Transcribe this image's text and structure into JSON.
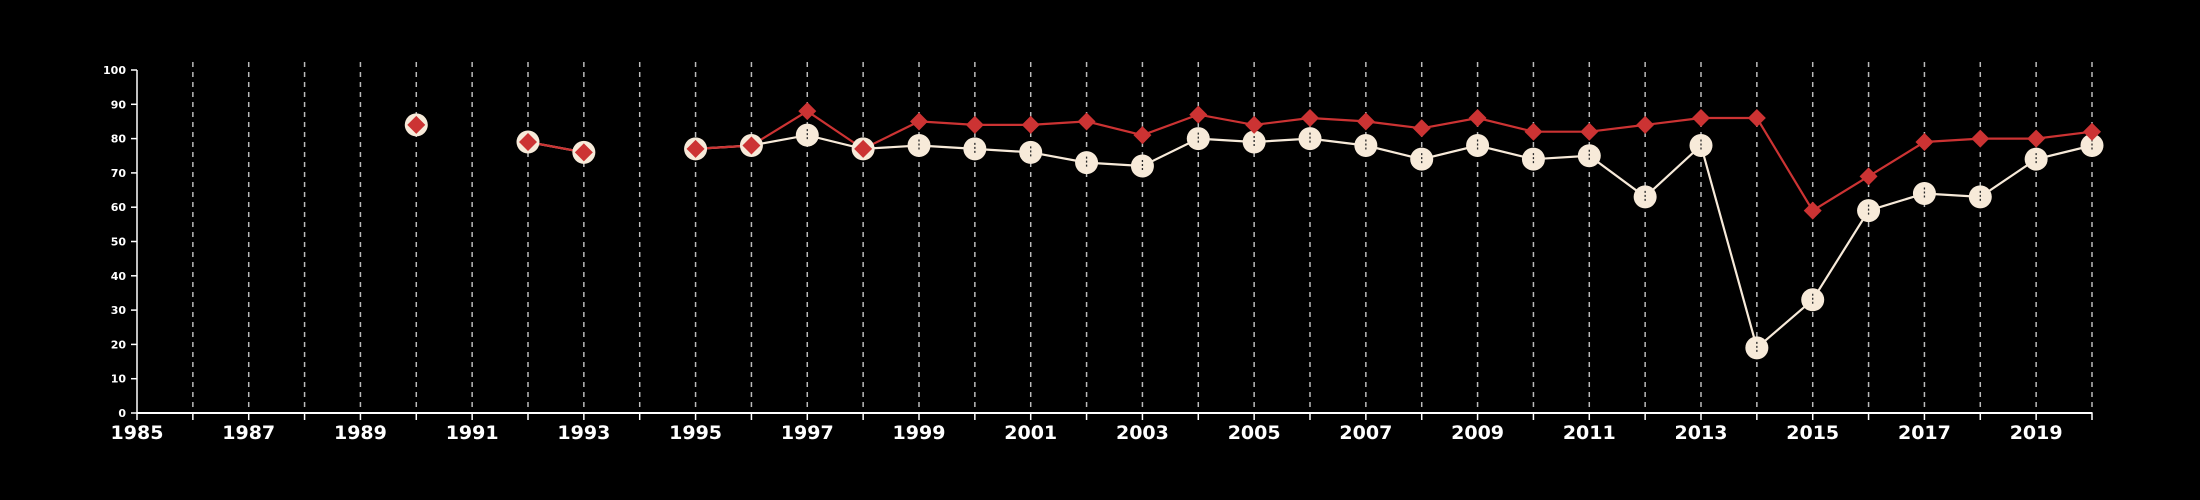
{
  "chart_data": {
    "type": "line",
    "title": "",
    "xlabel": "",
    "ylabel": "",
    "xlim": [
      1985,
      2020
    ],
    "ylim": [
      0,
      100
    ],
    "x_ticks": [
      "1985",
      "1987",
      "1989",
      "1991",
      "1993",
      "1995",
      "1997",
      "1999",
      "2001",
      "2003",
      "2005",
      "2007",
      "2009",
      "2011",
      "2013",
      "2015",
      "2017",
      "2019"
    ],
    "y_ticks": [
      "0",
      "10",
      "20",
      "30",
      "40",
      "50",
      "60",
      "70",
      "80",
      "90",
      "100"
    ],
    "vertical_grid": "dashed, every year",
    "horizontal_grid": false,
    "legend": "none",
    "colors": {
      "background": "#000000",
      "axis": "#ffffff",
      "grid": "#bbbbbb",
      "series_red": "#cc3333",
      "series_cream": "#f7ead9"
    },
    "series": [
      {
        "color": "#cc3333",
        "marker": "diamond",
        "points": [
          [
            1990,
            84
          ],
          [
            1992,
            79
          ],
          [
            1993,
            76
          ],
          [
            1995,
            77
          ],
          [
            1996,
            78
          ],
          [
            1997,
            88
          ],
          [
            1998,
            77
          ],
          [
            1999,
            85
          ],
          [
            2000,
            84
          ],
          [
            2001,
            84
          ],
          [
            2002,
            85
          ],
          [
            2003,
            81
          ],
          [
            2004,
            87
          ],
          [
            2005,
            84
          ],
          [
            2006,
            86
          ],
          [
            2007,
            85
          ],
          [
            2008,
            83
          ],
          [
            2009,
            86
          ],
          [
            2010,
            82
          ],
          [
            2011,
            82
          ],
          [
            2012,
            84
          ],
          [
            2013,
            86
          ],
          [
            2014,
            86
          ],
          [
            2015,
            59
          ],
          [
            2016,
            69
          ],
          [
            2017,
            79
          ],
          [
            2018,
            80
          ],
          [
            2019,
            80
          ],
          [
            2020,
            82
          ]
        ]
      },
      {
        "color": "#f7ead9",
        "marker": "circle",
        "points": [
          [
            1990,
            84
          ],
          [
            1992,
            79
          ],
          [
            1993,
            76
          ],
          [
            1995,
            77
          ],
          [
            1996,
            78
          ],
          [
            1997,
            81
          ],
          [
            1998,
            77
          ],
          [
            1999,
            78
          ],
          [
            2000,
            77
          ],
          [
            2001,
            76
          ],
          [
            2002,
            73
          ],
          [
            2003,
            72
          ],
          [
            2004,
            80
          ],
          [
            2005,
            79
          ],
          [
            2006,
            80
          ],
          [
            2007,
            78
          ],
          [
            2008,
            74
          ],
          [
            2009,
            78
          ],
          [
            2010,
            74
          ],
          [
            2011,
            75
          ],
          [
            2012,
            63
          ],
          [
            2013,
            78
          ],
          [
            2014,
            19
          ],
          [
            2015,
            33
          ],
          [
            2016,
            59
          ],
          [
            2017,
            64
          ],
          [
            2018,
            63
          ],
          [
            2019,
            74
          ],
          [
            2020,
            78
          ]
        ]
      }
    ]
  }
}
